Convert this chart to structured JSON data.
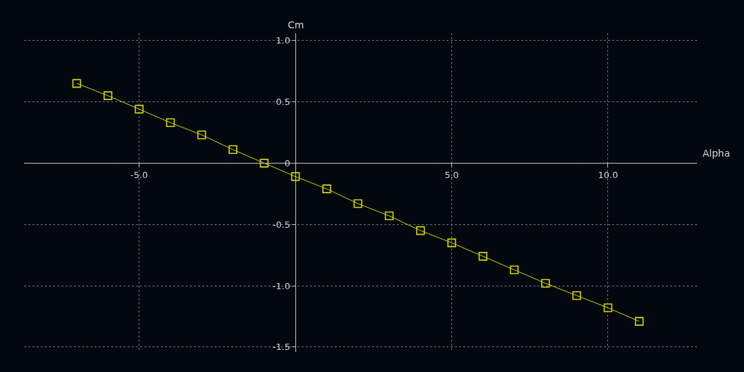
{
  "chart_data": {
    "type": "line",
    "xlabel": "Alpha",
    "ylabel": "Cm",
    "x": [
      -7,
      -6,
      -5,
      -4,
      -3,
      -2,
      -1,
      0,
      1,
      2,
      3,
      4,
      5,
      6,
      7,
      8,
      9,
      10,
      11
    ],
    "series": [
      {
        "color": "#d8d800",
        "values": [
          0.65,
          0.55,
          0.44,
          0.33,
          0.23,
          0.11,
          0.0,
          -0.11,
          -0.21,
          -0.33,
          -0.43,
          -0.55,
          -0.65,
          -0.76,
          -0.87,
          -0.98,
          -1.08,
          -1.18,
          -1.29
        ]
      }
    ],
    "xlim": [
      -8.68,
      12.85
    ],
    "ylim": [
      -1.54,
      1.06
    ],
    "xticks": [
      {
        "value": -5,
        "label": "-5.0"
      },
      {
        "value": 5,
        "label": "5.0"
      },
      {
        "value": 10,
        "label": "10.0"
      }
    ],
    "yticks": [
      {
        "value": 1,
        "label": "1.0"
      },
      {
        "value": 0.5,
        "label": "0.5"
      },
      {
        "value": 0,
        "label": "0"
      },
      {
        "value": -0.5,
        "label": "-0.5"
      },
      {
        "value": -1,
        "label": "-1.0"
      },
      {
        "value": -1.5,
        "label": "-1.5"
      }
    ],
    "grid": true,
    "marker": "square",
    "line_style": "solid"
  }
}
